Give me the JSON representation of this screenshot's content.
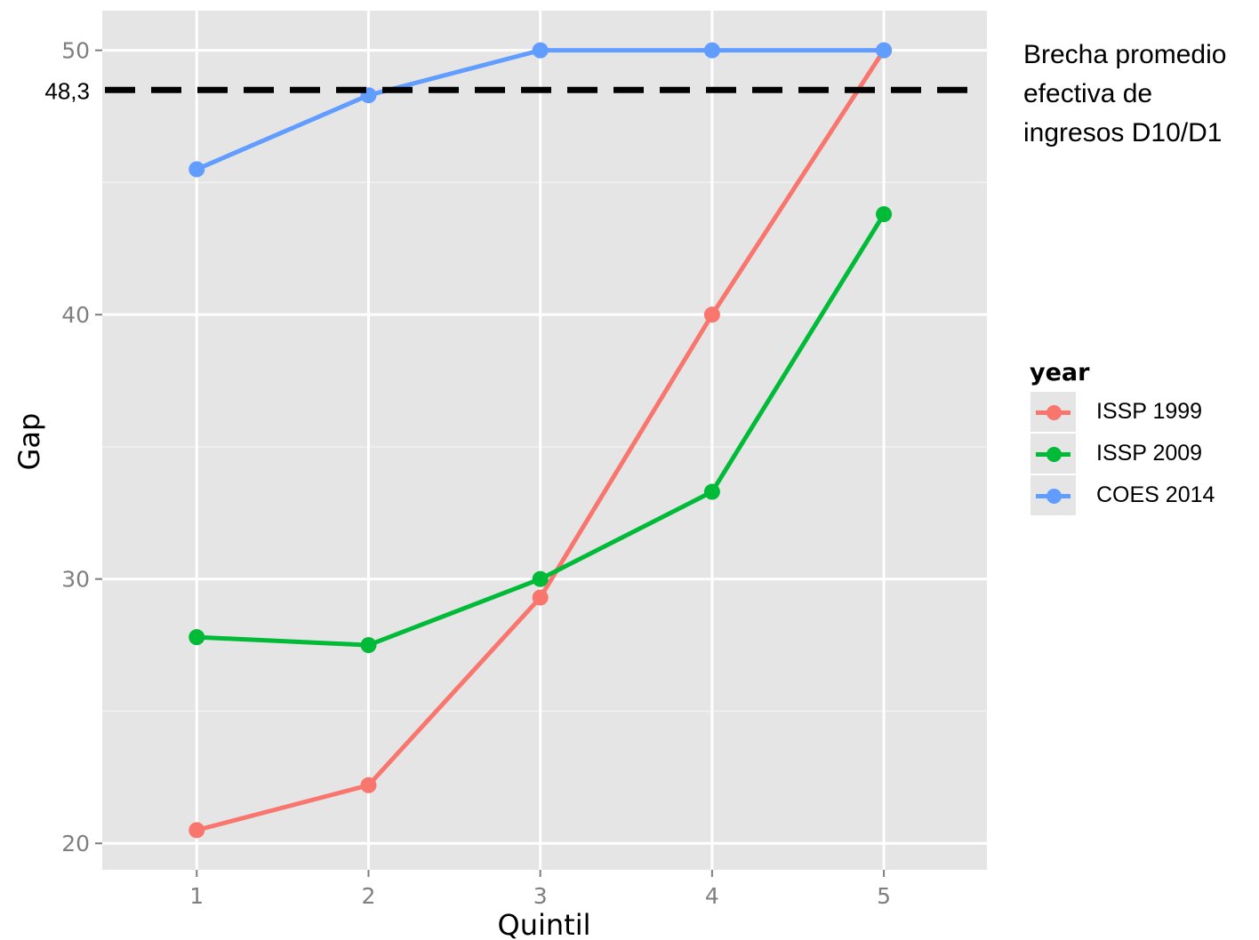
{
  "chart_data": {
    "type": "line",
    "title": "",
    "xlabel": "Quintil",
    "ylabel": "Gap",
    "x": [
      1,
      2,
      3,
      4,
      5
    ],
    "x_ticks": [
      "1",
      "2",
      "3",
      "4",
      "5"
    ],
    "y_ticks": [
      "20",
      "30",
      "40",
      "50"
    ],
    "xlim": [
      0.45,
      5.6
    ],
    "ylim": [
      19,
      51.5
    ],
    "grid": true,
    "legend_title": "year",
    "legend_position": "right",
    "series": [
      {
        "name": "ISSP 1999",
        "color": "#f8766d",
        "values": [
          20.5,
          22.2,
          29.3,
          40.0,
          50.0
        ]
      },
      {
        "name": "ISSP 2009",
        "color": "#00ba38",
        "values": [
          27.8,
          27.5,
          30.0,
          33.3,
          43.8
        ]
      },
      {
        "name": "COES 2014",
        "color": "#619cff",
        "values": [
          45.5,
          48.3,
          50.0,
          50.0,
          50.0
        ]
      }
    ],
    "reference_line": {
      "value": 48.5,
      "label": "48,3",
      "style": "dashed",
      "color": "#000000"
    },
    "annotation": [
      "Brecha promedio",
      "efectiva de",
      "ingresos D10/D1"
    ]
  }
}
